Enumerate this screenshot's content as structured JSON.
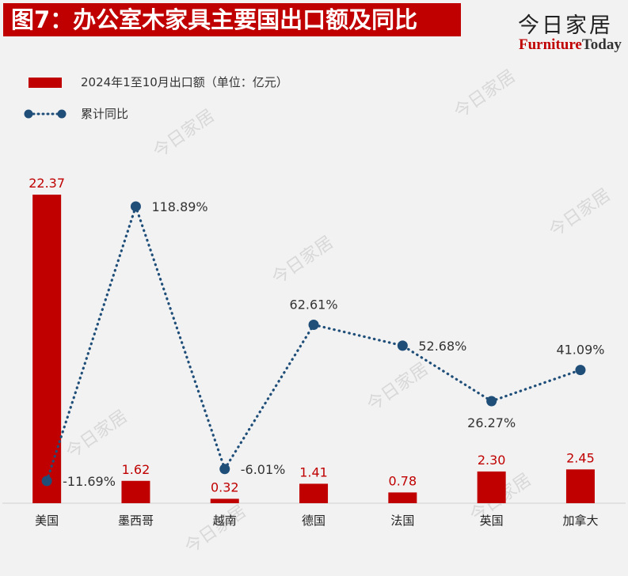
{
  "title": "图7：办公室木家具主要国出口额及同比",
  "brand": {
    "name_cn": "今日家居",
    "name_en_part1": "Furniture",
    "name_en_part2": "Today",
    "color": "#c00000"
  },
  "legend": {
    "bar_label": "2024年1至10月出口额（单位：亿元）",
    "line_label": "累计同比"
  },
  "colors": {
    "bar": "#c00000",
    "line": "#1f4e79"
  },
  "chart_data": {
    "type": "bar+line",
    "categories": [
      "美国",
      "墨西哥",
      "越南",
      "德国",
      "法国",
      "英国",
      "加拿大"
    ],
    "series": [
      {
        "name": "2024年1至10月出口额（单位：亿元）",
        "type": "bar",
        "values": [
          22.37,
          1.62,
          0.32,
          1.41,
          0.78,
          2.3,
          2.45
        ],
        "value_labels": [
          "22.37",
          "1.62",
          "0.32",
          "1.41",
          "0.78",
          "2.30",
          "2.45"
        ]
      },
      {
        "name": "累计同比",
        "type": "line",
        "values": [
          -11.69,
          118.89,
          -6.01,
          62.61,
          52.68,
          26.27,
          41.09
        ],
        "value_labels": [
          "-11.69%",
          "118.89%",
          "-6.01%",
          "62.61%",
          "52.68%",
          "26.27%",
          "41.09%"
        ]
      }
    ],
    "bar_ylim": [
      0,
      22.37
    ],
    "line_ylim": [
      -14,
      120
    ],
    "grid": false,
    "legend_position": "top-left"
  }
}
